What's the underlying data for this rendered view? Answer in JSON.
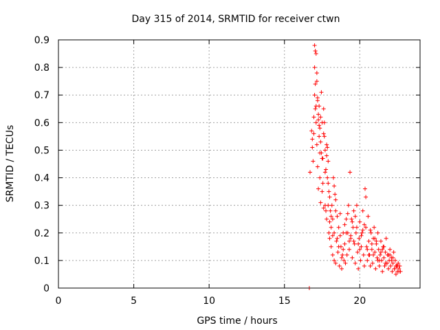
{
  "chart_data": {
    "type": "scatter",
    "title": "Day 315 of 2014, SRMTID for receiver ctwn",
    "xlabel": "GPS time / hours",
    "ylabel": "SRMTID / TECUs",
    "xlim": [
      0,
      24
    ],
    "ylim": [
      0,
      0.9
    ],
    "xticks": [
      0,
      5,
      10,
      15,
      20
    ],
    "xtick_labels": [
      "0",
      "5",
      "10",
      "15",
      "20"
    ],
    "yticks": [
      0,
      0.1,
      0.2,
      0.3,
      0.4,
      0.5,
      0.6,
      0.7,
      0.8,
      0.9
    ],
    "ytick_labels": [
      "0",
      "0.1",
      "0.2",
      "0.3",
      "0.4",
      "0.5",
      "0.6",
      "0.7",
      "0.8",
      "0.9"
    ],
    "grid": true,
    "marker": "+",
    "color": "#ff0000",
    "series": [
      {
        "name": "SRMTID",
        "x": [
          16.65,
          16.7,
          16.8,
          16.85,
          16.9,
          16.95,
          17.0,
          17.0,
          17.05,
          17.05,
          17.1,
          17.1,
          17.15,
          17.15,
          17.2,
          17.2,
          17.25,
          17.25,
          17.3,
          17.3,
          17.35,
          17.35,
          17.4,
          17.4,
          17.45,
          17.5,
          17.5,
          17.55,
          17.6,
          17.6,
          17.65,
          17.7,
          17.7,
          17.75,
          17.8,
          17.8,
          17.85,
          17.9,
          17.9,
          17.95,
          18.0,
          18.0,
          18.05,
          18.1,
          18.1,
          18.15,
          18.2,
          18.2,
          18.25,
          18.3,
          18.3,
          18.35,
          18.4,
          18.4,
          18.45,
          18.5,
          18.55,
          18.6,
          18.65,
          18.7,
          18.75,
          18.8,
          18.85,
          18.9,
          18.95,
          19.0,
          19.05,
          19.1,
          19.15,
          19.2,
          19.25,
          19.3,
          19.35,
          19.4,
          19.45,
          19.5,
          19.55,
          19.6,
          19.65,
          19.7,
          19.75,
          19.8,
          19.85,
          19.9,
          19.95,
          20.0,
          20.05,
          20.1,
          20.15,
          20.2,
          20.25,
          20.3,
          20.35,
          20.4,
          20.45,
          20.5,
          20.55,
          20.6,
          20.65,
          20.7,
          20.75,
          20.8,
          20.85,
          20.9,
          20.95,
          21.0,
          21.05,
          21.1,
          21.15,
          21.2,
          21.25,
          21.3,
          21.35,
          21.4,
          21.45,
          21.5,
          21.55,
          21.6,
          21.65,
          21.7,
          21.75,
          21.8,
          21.85,
          21.9,
          21.95,
          22.0,
          22.05,
          22.1,
          22.15,
          22.2,
          22.25,
          22.3,
          22.35,
          22.4,
          22.45,
          22.5,
          22.55,
          22.6,
          22.65,
          22.7,
          17.0,
          17.1,
          17.2,
          17.3,
          17.4,
          17.5,
          17.6,
          17.7,
          17.8,
          17.9,
          18.0,
          18.2,
          18.4,
          18.6,
          18.8,
          19.0,
          19.2,
          19.4,
          19.6,
          19.8,
          20.0,
          20.2,
          20.4,
          20.6,
          20.8,
          21.0,
          21.2,
          21.4,
          21.6,
          21.8,
          22.0,
          22.2,
          22.4,
          22.6,
          16.85,
          16.95,
          17.05,
          17.15,
          17.25,
          17.35,
          17.45,
          17.55,
          17.65,
          17.75,
          17.85,
          17.95,
          18.1,
          18.3,
          18.5,
          18.7,
          18.9,
          19.1,
          19.3,
          19.5,
          19.7,
          19.9,
          20.1,
          20.3,
          20.5,
          20.7,
          20.9,
          21.1,
          21.3,
          21.5,
          21.7,
          21.9,
          22.1,
          22.3,
          22.5
        ],
        "y": [
          0.0,
          0.42,
          0.57,
          0.54,
          0.46,
          0.62,
          0.8,
          0.88,
          0.86,
          0.74,
          0.85,
          0.6,
          0.75,
          0.52,
          0.69,
          0.44,
          0.61,
          0.36,
          0.66,
          0.55,
          0.58,
          0.4,
          0.62,
          0.31,
          0.49,
          0.6,
          0.35,
          0.47,
          0.65,
          0.29,
          0.55,
          0.5,
          0.3,
          0.43,
          0.52,
          0.25,
          0.4,
          0.46,
          0.3,
          0.2,
          0.33,
          0.18,
          0.28,
          0.22,
          0.15,
          0.3,
          0.25,
          0.12,
          0.4,
          0.2,
          0.1,
          0.34,
          0.28,
          0.09,
          0.17,
          0.26,
          0.13,
          0.22,
          0.08,
          0.19,
          0.15,
          0.07,
          0.12,
          0.2,
          0.1,
          0.16,
          0.09,
          0.25,
          0.12,
          0.2,
          0.3,
          0.14,
          0.42,
          0.18,
          0.25,
          0.11,
          0.22,
          0.28,
          0.16,
          0.09,
          0.2,
          0.3,
          0.13,
          0.07,
          0.18,
          0.24,
          0.1,
          0.15,
          0.2,
          0.28,
          0.12,
          0.08,
          0.36,
          0.22,
          0.15,
          0.1,
          0.26,
          0.17,
          0.12,
          0.08,
          0.2,
          0.14,
          0.09,
          0.18,
          0.22,
          0.13,
          0.07,
          0.16,
          0.11,
          0.2,
          0.14,
          0.08,
          0.12,
          0.17,
          0.1,
          0.06,
          0.15,
          0.11,
          0.08,
          0.13,
          0.18,
          0.09,
          0.12,
          0.07,
          0.1,
          0.14,
          0.08,
          0.11,
          0.06,
          0.09,
          0.13,
          0.07,
          0.1,
          0.05,
          0.08,
          0.06,
          0.09,
          0.07,
          0.08,
          0.06,
          0.7,
          0.66,
          0.68,
          0.59,
          0.53,
          0.47,
          0.56,
          0.42,
          0.48,
          0.38,
          0.24,
          0.19,
          0.32,
          0.15,
          0.11,
          0.23,
          0.27,
          0.19,
          0.17,
          0.22,
          0.14,
          0.21,
          0.33,
          0.12,
          0.16,
          0.18,
          0.1,
          0.13,
          0.15,
          0.09,
          0.12,
          0.11,
          0.08,
          0.06,
          0.51,
          0.56,
          0.65,
          0.78,
          0.63,
          0.49,
          0.71,
          0.38,
          0.6,
          0.28,
          0.51,
          0.35,
          0.26,
          0.37,
          0.18,
          0.27,
          0.14,
          0.2,
          0.17,
          0.24,
          0.26,
          0.16,
          0.19,
          0.23,
          0.14,
          0.21,
          0.12,
          0.17,
          0.1,
          0.14,
          0.09,
          0.12,
          0.1,
          0.07,
          0.08
        ]
      }
    ]
  }
}
